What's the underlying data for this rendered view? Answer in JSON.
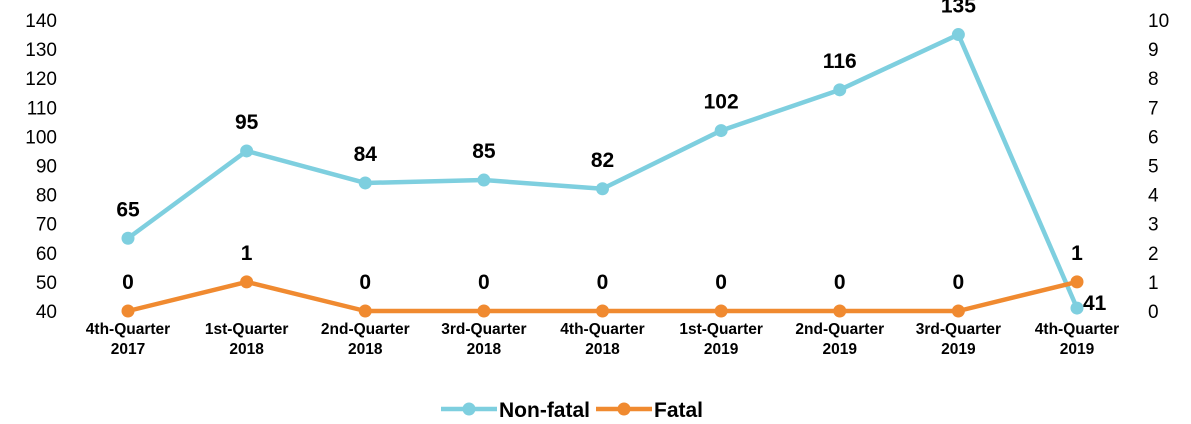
{
  "chart_data": {
    "type": "line",
    "categories": [
      [
        "4th-Quarter",
        "2017"
      ],
      [
        "1st-Quarter",
        "2018"
      ],
      [
        "2nd-Quarter",
        "2018"
      ],
      [
        "3rd-Quarter",
        "2018"
      ],
      [
        "4th-Quarter",
        "2018"
      ],
      [
        "1st-Quarter",
        "2019"
      ],
      [
        "2nd-Quarter",
        "2019"
      ],
      [
        "3rd-Quarter",
        "2019"
      ],
      [
        "4th-Quarter",
        "2019"
      ]
    ],
    "series": [
      {
        "name": "Non-fatal",
        "axis": "left",
        "color": "#7ECFDF",
        "values": [
          65,
          95,
          84,
          85,
          82,
          102,
          116,
          135,
          41
        ]
      },
      {
        "name": "Fatal",
        "axis": "right",
        "color": "#F08A30",
        "values": [
          0,
          1,
          0,
          0,
          0,
          0,
          0,
          0,
          1
        ]
      }
    ],
    "y_left": {
      "min": 40,
      "max": 140,
      "step": 10
    },
    "y_right": {
      "min": 0,
      "max": 10,
      "step": 1
    },
    "data_labels": true,
    "grid": false,
    "legend_position": "bottom"
  }
}
